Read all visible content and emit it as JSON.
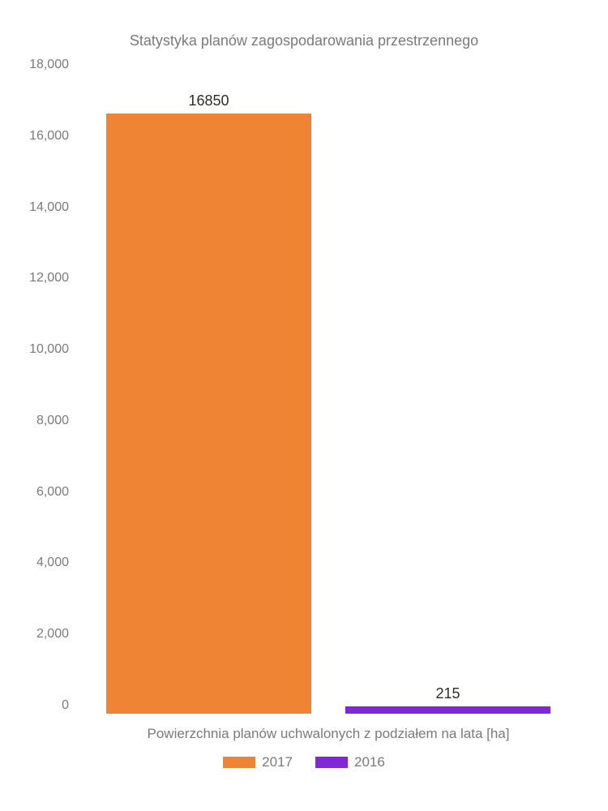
{
  "chart": {
    "type": "bar",
    "title": "Statystyka planów zagospodarowania przestrzennego",
    "title_fontsize": 18,
    "title_color": "#7a7a7a",
    "xlabel": "Powierzchnia planów uchwalonych z podziałem na lata [ha]",
    "label_fontsize": 17,
    "label_color": "#7a7a7a",
    "ylim_min": 0,
    "ylim_max": 18000,
    "ytick_step": 2000,
    "yticks": [
      "0",
      "2,000",
      "4,000",
      "6,000",
      "8,000",
      "10,000",
      "12,000",
      "14,000",
      "16,000",
      "18,000"
    ],
    "tick_fontsize": 16,
    "tick_color": "#7a7a7a",
    "background_color": "#ffffff",
    "bars": [
      {
        "value": 16850,
        "label": "16850",
        "color": "#ee8434",
        "label_color": "#2c2c2c"
      },
      {
        "value": 215,
        "label": "215",
        "color": "#8126d9",
        "label_color": "#2c2c2c"
      }
    ],
    "legend": [
      {
        "color": "#ee8434",
        "text": "2017"
      },
      {
        "color": "#8126d9",
        "text": "2016"
      }
    ]
  }
}
